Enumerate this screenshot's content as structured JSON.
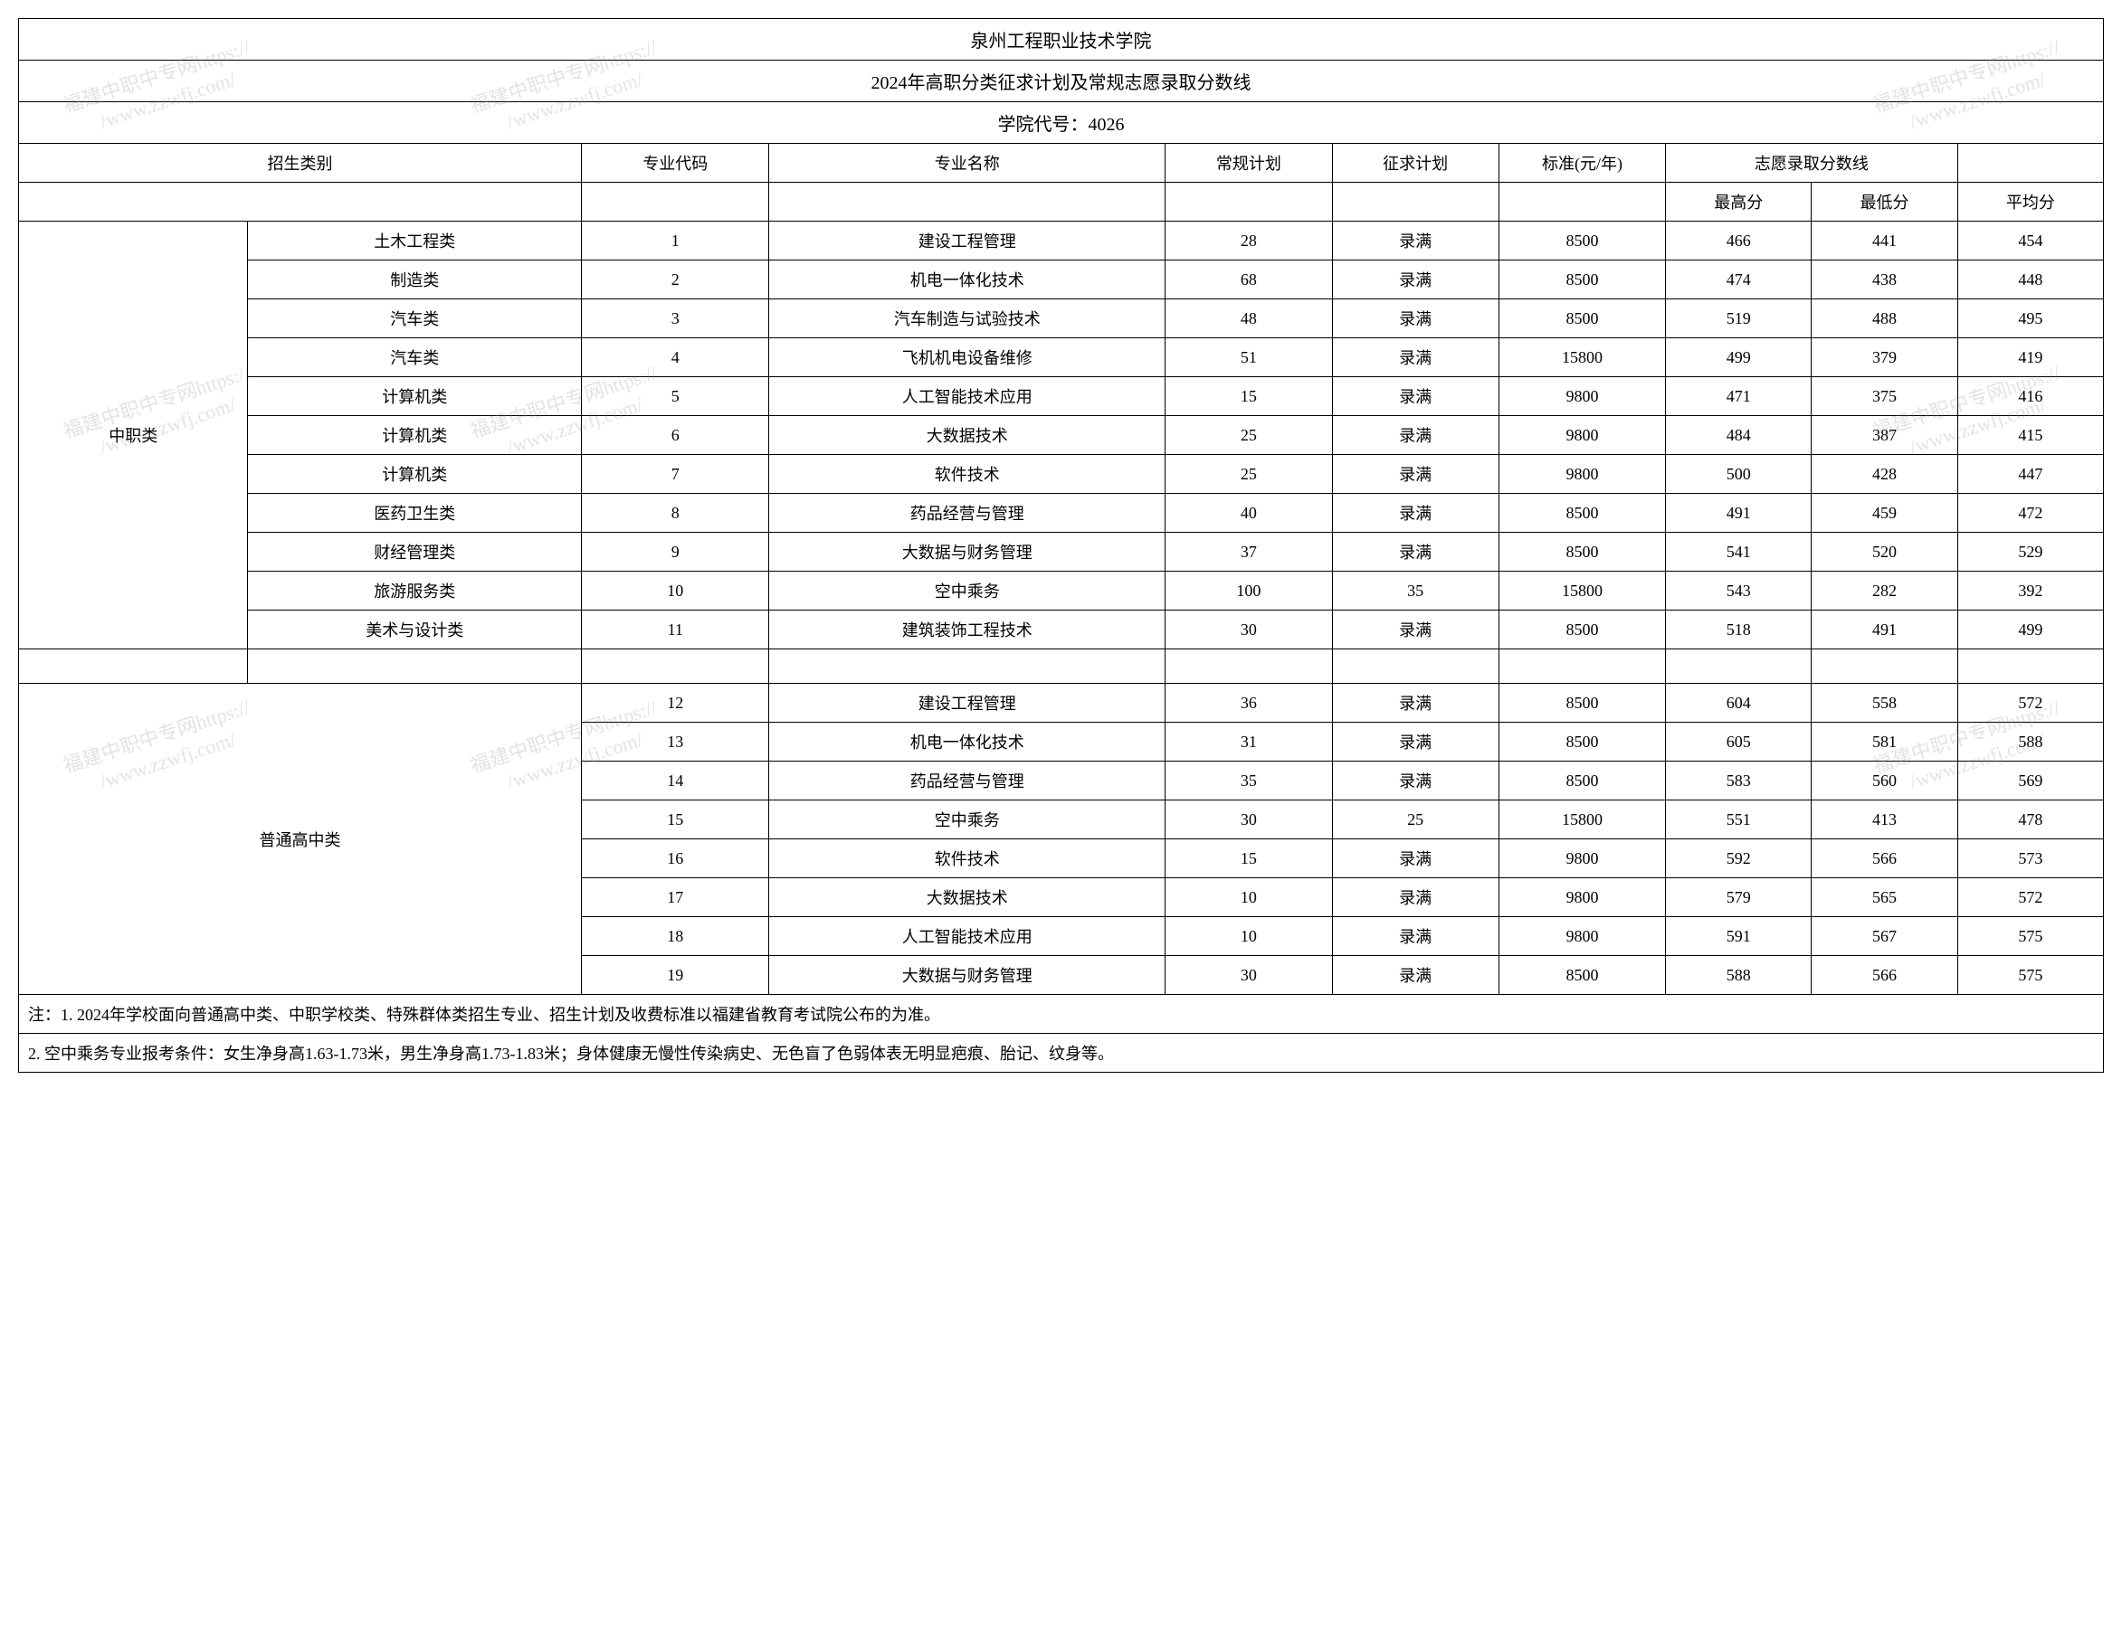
{
  "header": {
    "title": "泉州工程职业技术学院",
    "subtitle": "2024年高职分类征求计划及常规志愿录取分数线",
    "code_line": "学院代号：4026"
  },
  "columns": {
    "category": "招生类别",
    "major_code": "专业代码",
    "major_name": "专业名称",
    "regular_plan": "常规计划",
    "request_plan": "征求计划",
    "fee": "标准(元/年)",
    "score_header": "志愿录取分数线",
    "max": "最高分",
    "min": "最低分",
    "avg": "平均分"
  },
  "groups": [
    {
      "name": "中职类",
      "rows": [
        {
          "sub": "土木工程类",
          "code": "1",
          "major": "建设工程管理",
          "plan": "28",
          "req": "录满",
          "fee": "8500",
          "max": "466",
          "min": "441",
          "avg": "454"
        },
        {
          "sub": "制造类",
          "code": "2",
          "major": "机电一体化技术",
          "plan": "68",
          "req": "录满",
          "fee": "8500",
          "max": "474",
          "min": "438",
          "avg": "448"
        },
        {
          "sub": "汽车类",
          "code": "3",
          "major": "汽车制造与试验技术",
          "plan": "48",
          "req": "录满",
          "fee": "8500",
          "max": "519",
          "min": "488",
          "avg": "495"
        },
        {
          "sub": "汽车类",
          "code": "4",
          "major": "飞机机电设备维修",
          "plan": "51",
          "req": "录满",
          "fee": "15800",
          "max": "499",
          "min": "379",
          "avg": "419"
        },
        {
          "sub": "计算机类",
          "code": "5",
          "major": "人工智能技术应用",
          "plan": "15",
          "req": "录满",
          "fee": "9800",
          "max": "471",
          "min": "375",
          "avg": "416"
        },
        {
          "sub": "计算机类",
          "code": "6",
          "major": "大数据技术",
          "plan": "25",
          "req": "录满",
          "fee": "9800",
          "max": "484",
          "min": "387",
          "avg": "415"
        },
        {
          "sub": "计算机类",
          "code": "7",
          "major": "软件技术",
          "plan": "25",
          "req": "录满",
          "fee": "9800",
          "max": "500",
          "min": "428",
          "avg": "447"
        },
        {
          "sub": "医药卫生类",
          "code": "8",
          "major": "药品经营与管理",
          "plan": "40",
          "req": "录满",
          "fee": "8500",
          "max": "491",
          "min": "459",
          "avg": "472"
        },
        {
          "sub": "财经管理类",
          "code": "9",
          "major": "大数据与财务管理",
          "plan": "37",
          "req": "录满",
          "fee": "8500",
          "max": "541",
          "min": "520",
          "avg": "529"
        },
        {
          "sub": "旅游服务类",
          "code": "10",
          "major": "空中乘务",
          "plan": "100",
          "req": "35",
          "fee": "15800",
          "max": "543",
          "min": "282",
          "avg": "392"
        },
        {
          "sub": "美术与设计类",
          "code": "11",
          "major": "建筑装饰工程技术",
          "plan": "30",
          "req": "录满",
          "fee": "8500",
          "max": "518",
          "min": "491",
          "avg": "499"
        }
      ]
    },
    {
      "name": "普通高中类",
      "rows": [
        {
          "sub": "",
          "code": "12",
          "major": "建设工程管理",
          "plan": "36",
          "req": "录满",
          "fee": "8500",
          "max": "604",
          "min": "558",
          "avg": "572"
        },
        {
          "sub": "",
          "code": "13",
          "major": "机电一体化技术",
          "plan": "31",
          "req": "录满",
          "fee": "8500",
          "max": "605",
          "min": "581",
          "avg": "588"
        },
        {
          "sub": "",
          "code": "14",
          "major": "药品经营与管理",
          "plan": "35",
          "req": "录满",
          "fee": "8500",
          "max": "583",
          "min": "560",
          "avg": "569"
        },
        {
          "sub": "",
          "code": "15",
          "major": "空中乘务",
          "plan": "30",
          "req": "25",
          "fee": "15800",
          "max": "551",
          "min": "413",
          "avg": "478"
        },
        {
          "sub": "",
          "code": "16",
          "major": "软件技术",
          "plan": "15",
          "req": "录满",
          "fee": "9800",
          "max": "592",
          "min": "566",
          "avg": "573"
        },
        {
          "sub": "",
          "code": "17",
          "major": "大数据技术",
          "plan": "10",
          "req": "录满",
          "fee": "9800",
          "max": "579",
          "min": "565",
          "avg": "572"
        },
        {
          "sub": "",
          "code": "18",
          "major": "人工智能技术应用",
          "plan": "10",
          "req": "录满",
          "fee": "9800",
          "max": "591",
          "min": "567",
          "avg": "575"
        },
        {
          "sub": "",
          "code": "19",
          "major": "大数据与财务管理",
          "plan": "30",
          "req": "录满",
          "fee": "8500",
          "max": "588",
          "min": "566",
          "avg": "575"
        }
      ]
    }
  ],
  "notes": {
    "n1": "注：1. 2024年学校面向普通高中类、中职学校类、特殊群体类招生专业、招生计划及收费标准以福建省教育考试院公布的为准。",
    "n2": "2. 空中乘务专业报考条件：女生净身高1.63-1.73米，男生净身高1.73-1.83米；身体健康无慢性传染病史、无色盲了色弱体表无明显疤痕、胎记、纹身等。"
  },
  "watermark": {
    "line1": "福建中职中专网https://",
    "line2": "www.zzwfj.com/"
  }
}
